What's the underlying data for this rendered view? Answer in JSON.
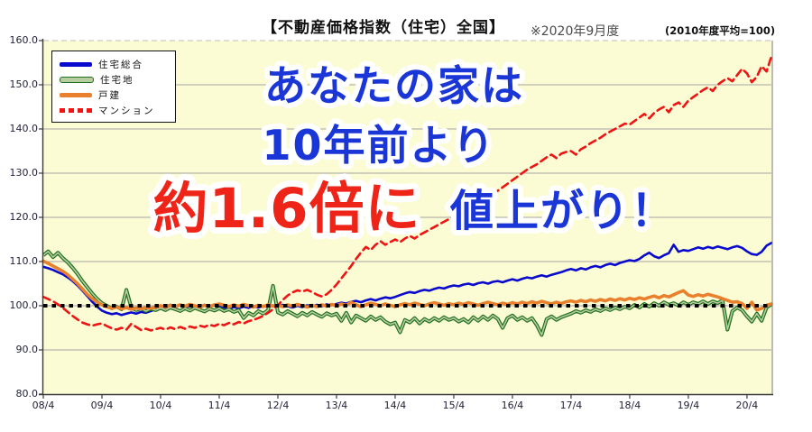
{
  "header": {
    "title": "【不動産価格指数（住宅）全国】",
    "period_note": "※2020年9月度",
    "base_note": "(2010年度平均=100)"
  },
  "overlay": {
    "line1": "あなたの家は",
    "line2": "10年前より",
    "line3_red": "約1.6倍に",
    "line3_blue": "値上がり！",
    "blue_color": "#1b36d6",
    "red_color": "#ee2418"
  },
  "chart_data": {
    "type": "line",
    "title": "不動産価格指数（住宅）全国",
    "subtitle": "※2020年9月度",
    "base_note": "2010年度平均=100",
    "x_unit": "monthly, 2008/4 - 2020/9",
    "x_tick_labels": [
      "08/4",
      "09/4",
      "10/4",
      "11/4",
      "12/4",
      "13/4",
      "14/4",
      "15/4",
      "16/4",
      "17/4",
      "18/4",
      "19/4",
      "20/4"
    ],
    "x_tick_months": [
      0,
      12,
      24,
      36,
      48,
      60,
      72,
      84,
      96,
      108,
      120,
      132,
      144
    ],
    "y_ticks": [
      160,
      150,
      140,
      130,
      120,
      110,
      100,
      90,
      80
    ],
    "ylim": [
      80,
      160
    ],
    "baseline": 100,
    "grid": "horizontal",
    "legend_position": "top-left",
    "plot_bg": "#fbfbd4",
    "grid_color": "#a6a6a6",
    "axis_color": "#3a3a3a",
    "series": [
      {
        "name": "住宅総合",
        "key": "housing-total",
        "style": "solid",
        "color": "#0a0ace",
        "width": 2.6,
        "values": [
          108.8,
          108.5,
          108.1,
          107.6,
          107.1,
          106.4,
          105.6,
          104.6,
          103.4,
          102.2,
          100.9,
          99.8,
          98.9,
          98.4,
          98.1,
          98.3,
          97.9,
          98.2,
          98.5,
          98.2,
          98.6,
          98.4,
          98.8,
          99.2,
          99.6,
          99.9,
          100.2,
          99.8,
          100.1,
          99.7,
          100.0,
          99.6,
          99.9,
          100.2,
          99.8,
          100.1,
          100.0,
          99.6,
          99.3,
          99.7,
          99.4,
          99.8,
          99.5,
          99.9,
          99.6,
          100.0,
          99.7,
          100.1,
          99.8,
          100.2,
          99.9,
          99.6,
          100.0,
          99.7,
          100.1,
          99.8,
          100.2,
          99.9,
          100.3,
          100.1,
          100.4,
          100.7,
          100.5,
          100.9,
          101.1,
          100.8,
          101.2,
          101.5,
          101.2,
          101.6,
          101.9,
          101.7,
          102.0,
          102.4,
          102.8,
          103.1,
          102.9,
          103.3,
          103.6,
          103.4,
          103.8,
          104.1,
          103.9,
          104.3,
          104.6,
          104.4,
          104.8,
          105.0,
          104.7,
          105.1,
          105.3,
          105.0,
          105.4,
          105.6,
          105.3,
          105.7,
          106.0,
          105.7,
          106.1,
          106.4,
          106.2,
          106.6,
          106.9,
          106.6,
          107.0,
          107.3,
          107.6,
          108.0,
          108.3,
          108.0,
          108.5,
          108.2,
          108.7,
          109.0,
          108.7,
          109.2,
          109.5,
          109.2,
          109.7,
          110.0,
          110.3,
          110.1,
          110.6,
          111.4,
          112.0,
          111.2,
          110.8,
          111.4,
          111.9,
          113.8,
          112.2,
          112.6,
          112.4,
          112.8,
          113.2,
          112.9,
          113.3,
          113.0,
          113.4,
          113.1,
          112.8,
          113.2,
          113.5,
          113.1,
          112.3,
          111.7,
          111.5,
          112.2,
          113.6,
          114.2
        ]
      },
      {
        "name": "住宅地",
        "key": "residential-land",
        "style": "outline",
        "color": "#b7cc9f",
        "edge": "#20701f",
        "width": 4,
        "values": [
          111.4,
          112.3,
          111.0,
          112.0,
          110.8,
          109.8,
          108.6,
          107.2,
          105.6,
          104.2,
          102.8,
          101.6,
          100.6,
          100.0,
          99.4,
          99.8,
          99.2,
          103.6,
          99.6,
          99.0,
          99.4,
          98.8,
          99.3,
          99.0,
          99.5,
          99.0,
          99.6,
          99.2,
          98.8,
          99.4,
          98.9,
          99.5,
          99.1,
          98.7,
          99.3,
          98.9,
          99.4,
          98.8,
          99.2,
          98.6,
          99.0,
          97.2,
          98.4,
          97.8,
          98.8,
          98.2,
          99.0,
          104.5,
          98.5,
          98.0,
          98.8,
          98.2,
          97.6,
          98.4,
          97.8,
          98.6,
          98.0,
          97.5,
          98.3,
          97.8,
          98.2,
          96.6,
          98.4,
          96.2,
          97.8,
          97.2,
          96.6,
          97.6,
          96.8,
          97.4,
          96.4,
          95.8,
          96.2,
          94.0,
          96.8,
          96.2,
          97.2,
          96.0,
          97.0,
          96.4,
          97.2,
          96.6,
          97.4,
          96.8,
          97.2,
          96.4,
          97.0,
          96.2,
          97.4,
          96.6,
          97.6,
          96.8,
          97.8,
          97.0,
          95.0,
          97.2,
          97.8,
          96.8,
          97.4,
          96.6,
          97.2,
          95.6,
          93.4,
          97.0,
          97.6,
          96.8,
          97.4,
          97.8,
          98.2,
          98.8,
          98.4,
          99.0,
          98.6,
          99.2,
          98.8,
          99.4,
          99.0,
          99.6,
          99.2,
          99.8,
          99.4,
          100.2,
          99.6,
          100.4,
          99.8,
          100.6,
          100.0,
          100.8,
          100.2,
          100.6,
          100.0,
          100.8,
          100.2,
          100.8,
          100.4,
          101.0,
          100.4,
          101.0,
          100.6,
          101.2,
          94.6,
          98.8,
          99.6,
          99.0,
          97.6,
          96.4,
          98.2,
          96.6,
          99.6,
          100.3
        ]
      },
      {
        "name": "戸建",
        "key": "detached-house",
        "style": "solid",
        "color": "#e8802e",
        "width": 3.6,
        "values": [
          110.1,
          109.6,
          109.0,
          108.4,
          107.8,
          107.0,
          106.0,
          105.0,
          103.8,
          102.6,
          101.6,
          100.8,
          100.2,
          99.8,
          99.4,
          99.7,
          99.3,
          99.6,
          99.2,
          99.5,
          99.3,
          99.6,
          99.4,
          99.7,
          100.0,
          99.7,
          100.1,
          99.8,
          100.2,
          99.9,
          100.3,
          100.0,
          99.7,
          100.1,
          99.8,
          100.2,
          100.4,
          100.1,
          99.8,
          100.2,
          99.9,
          100.3,
          100.0,
          99.7,
          100.1,
          99.8,
          100.2,
          99.9,
          100.1,
          99.8,
          100.2,
          99.9,
          100.3,
          100.0,
          99.7,
          100.1,
          99.8,
          100.2,
          99.9,
          100.3,
          100.0,
          100.4,
          100.1,
          100.8,
          100.2,
          99.8,
          100.2,
          100.6,
          100.3,
          100.0,
          100.4,
          100.1,
          99.8,
          100.2,
          100.5,
          100.2,
          100.6,
          100.3,
          100.0,
          100.4,
          100.7,
          100.4,
          100.1,
          100.5,
          100.2,
          100.6,
          100.3,
          100.7,
          100.4,
          100.1,
          100.5,
          100.8,
          100.5,
          100.2,
          100.6,
          100.3,
          100.7,
          100.4,
          100.8,
          100.5,
          100.9,
          100.6,
          101.0,
          100.7,
          100.4,
          100.8,
          100.5,
          100.9,
          101.1,
          100.8,
          101.2,
          100.9,
          101.3,
          101.0,
          101.4,
          101.1,
          101.5,
          101.2,
          101.6,
          101.3,
          101.7,
          101.4,
          101.8,
          101.5,
          101.9,
          102.2,
          101.8,
          102.3,
          102.0,
          102.5,
          103.0,
          103.4,
          102.4,
          102.1,
          102.5,
          102.2,
          102.6,
          102.3,
          102.0,
          101.6,
          101.2,
          100.8,
          100.9,
          100.5,
          99.4,
          100.8,
          99.0,
          99.4,
          100.1,
          100.4
        ]
      },
      {
        "name": "マンション",
        "key": "condominium",
        "style": "dashed",
        "color": "#ee1414",
        "width": 2.6,
        "values": [
          102.0,
          101.5,
          101.0,
          100.3,
          99.5,
          98.6,
          97.7,
          96.9,
          96.2,
          95.8,
          95.5,
          95.8,
          96.0,
          95.4,
          94.9,
          94.6,
          95.0,
          94.6,
          95.9,
          95.2,
          94.5,
          94.8,
          94.4,
          94.7,
          95.0,
          94.6,
          95.1,
          94.7,
          95.2,
          94.8,
          95.3,
          95.0,
          95.5,
          95.2,
          95.7,
          95.4,
          95.9,
          95.6,
          96.1,
          95.8,
          96.3,
          96.0,
          96.5,
          96.8,
          97.2,
          97.7,
          98.4,
          99.2,
          100.1,
          101.3,
          102.3,
          103.0,
          103.5,
          103.2,
          103.6,
          103.1,
          102.5,
          102.1,
          102.6,
          103.6,
          104.8,
          106.2,
          107.6,
          109.0,
          110.6,
          112.0,
          113.3,
          112.6,
          113.8,
          114.6,
          113.8,
          114.4,
          115.0,
          114.4,
          115.2,
          115.8,
          115.2,
          116.0,
          116.6,
          117.2,
          117.8,
          118.4,
          119.0,
          119.6,
          120.0,
          120.6,
          121.2,
          121.8,
          122.4,
          123.0,
          123.6,
          124.4,
          125.2,
          126.0,
          126.8,
          127.6,
          128.4,
          129.2,
          130.0,
          130.8,
          131.4,
          132.0,
          132.8,
          133.6,
          134.2,
          133.4,
          134.4,
          134.8,
          135.0,
          134.2,
          135.4,
          136.0,
          136.8,
          137.4,
          138.0,
          138.8,
          139.4,
          140.0,
          140.6,
          141.2,
          141.0,
          141.8,
          142.6,
          143.4,
          142.4,
          143.6,
          144.4,
          145.0,
          143.8,
          145.4,
          146.0,
          145.0,
          146.4,
          147.2,
          148.0,
          148.8,
          149.4,
          148.6,
          150.0,
          150.8,
          151.5,
          150.8,
          152.2,
          153.6,
          152.6,
          150.6,
          151.8,
          154.2,
          153.0,
          156.4
        ]
      }
    ]
  }
}
